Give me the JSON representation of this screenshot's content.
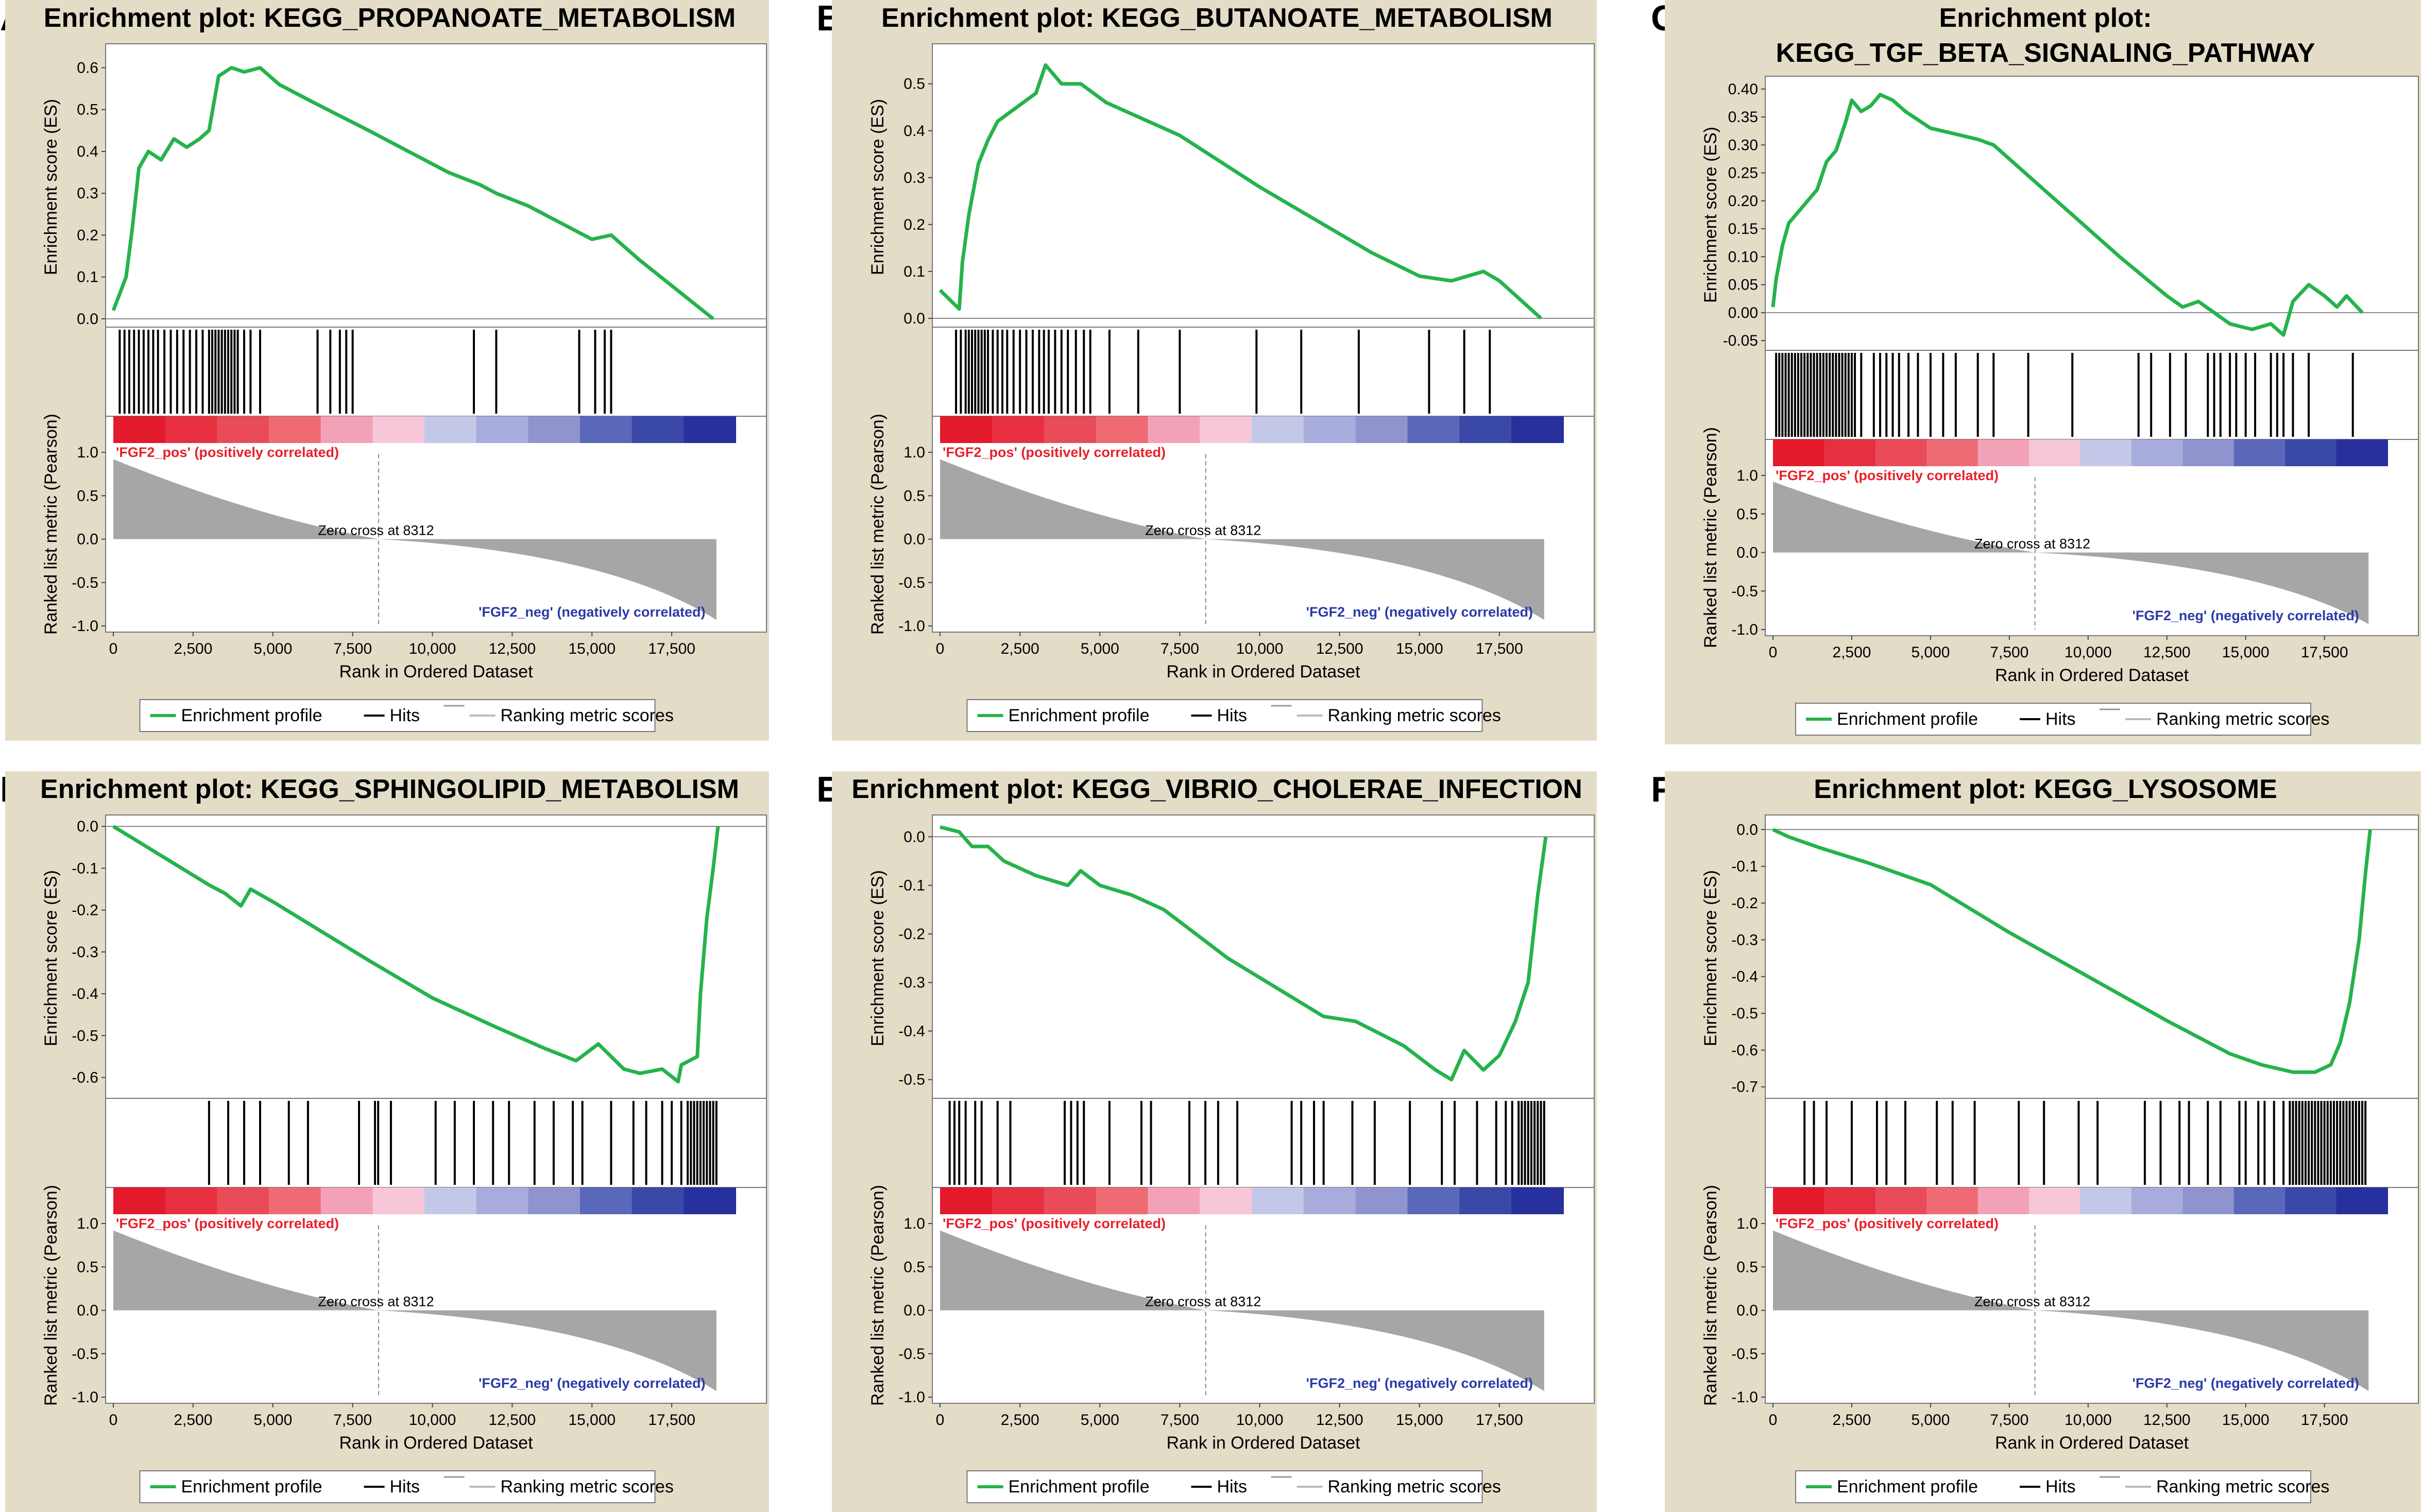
{
  "colors": {
    "frame_bg": "#e3ddc8",
    "enrichment_line": "#25b34b",
    "hits": "#000000",
    "metric_fill": "#a6a6a6",
    "pos_label": "#e8202a",
    "neg_label": "#2b3aa8",
    "heatmap": [
      "#e31a2c",
      "#e6303f",
      "#ea4b58",
      "#ee6b74",
      "#f2a1b6",
      "#f7c6d9",
      "#c4c8e8",
      "#a8acdc",
      "#8f94cf",
      "#5b67b9",
      "#3a48a8",
      "#27309c"
    ]
  },
  "shared": {
    "es_axis_label": "Enrichment score (ES)",
    "metric_axis_label": "Ranked list metric (Pearson)",
    "x_axis_label": "Rank in Ordered Dataset",
    "x_ticks": [
      "0",
      "2,500",
      "5,000",
      "7,500",
      "10,000",
      "12,500",
      "15,000",
      "17,500"
    ],
    "metric_ticks": [
      "1.0",
      "0.5",
      "0.0",
      "-0.5",
      "-1.0"
    ],
    "pos_label": "'FGF2_pos' (positively correlated)",
    "neg_label": "'FGF2_neg' (negatively correlated)",
    "zero_cross_label": "Zero cross at 8312",
    "legend": {
      "enrichment": "Enrichment profile",
      "hits": "Hits",
      "ranking": "Ranking metric scores"
    }
  },
  "chart_data": [
    {
      "type": "line",
      "panel": "A",
      "title": "Enrichment plot: KEGG_PROPANOATE_METABOLISM",
      "y_ticks": [
        "0.6",
        "0.5",
        "0.4",
        "0.3",
        "0.2",
        "0.1",
        "0.0"
      ],
      "ylim": [
        -0.01,
        0.64
      ],
      "xlim": [
        0,
        19500
      ],
      "zero_cross": 8312,
      "es_profile": [
        [
          0,
          0.02
        ],
        [
          200,
          0.06
        ],
        [
          400,
          0.1
        ],
        [
          600,
          0.22
        ],
        [
          800,
          0.36
        ],
        [
          1100,
          0.4
        ],
        [
          1500,
          0.38
        ],
        [
          1900,
          0.43
        ],
        [
          2300,
          0.41
        ],
        [
          2700,
          0.43
        ],
        [
          3000,
          0.45
        ],
        [
          3300,
          0.58
        ],
        [
          3700,
          0.6
        ],
        [
          4100,
          0.59
        ],
        [
          4600,
          0.6
        ],
        [
          5200,
          0.56
        ],
        [
          6200,
          0.52
        ],
        [
          8000,
          0.45
        ],
        [
          10500,
          0.35
        ],
        [
          11500,
          0.32
        ],
        [
          12000,
          0.3
        ],
        [
          13000,
          0.27
        ],
        [
          14500,
          0.21
        ],
        [
          15000,
          0.19
        ],
        [
          15600,
          0.2
        ],
        [
          16500,
          0.14
        ],
        [
          18800,
          0.0
        ]
      ],
      "hits": [
        200,
        350,
        500,
        650,
        800,
        950,
        1100,
        1250,
        1400,
        1600,
        1800,
        2000,
        2200,
        2400,
        2600,
        2800,
        3000,
        3100,
        3200,
        3300,
        3400,
        3500,
        3600,
        3700,
        3800,
        3900,
        4100,
        4300,
        4600,
        6400,
        6800,
        7100,
        7300,
        7500,
        11300,
        12000,
        14600,
        15100,
        15400,
        15600
      ]
    },
    {
      "type": "line",
      "panel": "B",
      "title": "Enrichment plot: KEGG_BUTANOATE_METABOLISM",
      "y_ticks": [
        "0.5",
        "0.4",
        "0.3",
        "0.2",
        "0.1",
        "0.0"
      ],
      "ylim": [
        -0.01,
        0.57
      ],
      "xlim": [
        0,
        19500
      ],
      "zero_cross": 8312,
      "es_profile": [
        [
          0,
          0.06
        ],
        [
          600,
          0.02
        ],
        [
          700,
          0.12
        ],
        [
          900,
          0.22
        ],
        [
          1200,
          0.33
        ],
        [
          1500,
          0.38
        ],
        [
          1800,
          0.42
        ],
        [
          2200,
          0.44
        ],
        [
          2600,
          0.46
        ],
        [
          3000,
          0.48
        ],
        [
          3300,
          0.54
        ],
        [
          3800,
          0.5
        ],
        [
          4400,
          0.5
        ],
        [
          5200,
          0.46
        ],
        [
          7500,
          0.39
        ],
        [
          10000,
          0.28
        ],
        [
          12000,
          0.2
        ],
        [
          13500,
          0.14
        ],
        [
          15000,
          0.09
        ],
        [
          16000,
          0.08
        ],
        [
          16500,
          0.09
        ],
        [
          17000,
          0.1
        ],
        [
          17500,
          0.08
        ],
        [
          18800,
          0.0
        ]
      ],
      "hits": [
        500,
        650,
        800,
        900,
        1000,
        1100,
        1200,
        1300,
        1400,
        1500,
        1650,
        1800,
        1950,
        2100,
        2300,
        2500,
        2700,
        2900,
        3100,
        3250,
        3400,
        3600,
        3800,
        4000,
        4250,
        4500,
        4700,
        5300,
        6200,
        7500,
        9900,
        11300,
        13100,
        15300,
        16400,
        17200
      ]
    },
    {
      "type": "line",
      "panel": "C",
      "title": "Enrichment plot:\nKEGG_TGF_BETA_SIGNALING_PATHWAY",
      "y_ticks": [
        "0.40",
        "0.35",
        "0.30",
        "0.25",
        "0.20",
        "0.15",
        "0.10",
        "0.05",
        "0.00",
        "-0.05"
      ],
      "ylim": [
        -0.06,
        0.41
      ],
      "xlim": [
        0,
        19500
      ],
      "zero_cross": 8312,
      "es_profile": [
        [
          0,
          0.01
        ],
        [
          100,
          0.06
        ],
        [
          300,
          0.12
        ],
        [
          500,
          0.16
        ],
        [
          800,
          0.18
        ],
        [
          1100,
          0.2
        ],
        [
          1400,
          0.22
        ],
        [
          1700,
          0.27
        ],
        [
          2000,
          0.29
        ],
        [
          2300,
          0.34
        ],
        [
          2500,
          0.38
        ],
        [
          2800,
          0.36
        ],
        [
          3100,
          0.37
        ],
        [
          3400,
          0.39
        ],
        [
          3800,
          0.38
        ],
        [
          4200,
          0.36
        ],
        [
          5000,
          0.33
        ],
        [
          6500,
          0.31
        ],
        [
          7000,
          0.3
        ],
        [
          9000,
          0.2
        ],
        [
          11000,
          0.1
        ],
        [
          12500,
          0.03
        ],
        [
          13000,
          0.01
        ],
        [
          13500,
          0.02
        ],
        [
          14000,
          0.0
        ],
        [
          14500,
          -0.02
        ],
        [
          15200,
          -0.03
        ],
        [
          15800,
          -0.02
        ],
        [
          16200,
          -0.04
        ],
        [
          16500,
          0.02
        ],
        [
          17000,
          0.05
        ],
        [
          17500,
          0.03
        ],
        [
          17900,
          0.01
        ],
        [
          18200,
          0.03
        ],
        [
          18700,
          0.0
        ]
      ],
      "hits": [
        100,
        200,
        300,
        400,
        500,
        600,
        700,
        800,
        900,
        1000,
        1100,
        1200,
        1300,
        1400,
        1500,
        1600,
        1700,
        1800,
        1900,
        2000,
        2100,
        2200,
        2300,
        2400,
        2500,
        2600,
        2800,
        3200,
        3400,
        3600,
        3800,
        4000,
        4300,
        4600,
        5000,
        5400,
        5800,
        6500,
        7000,
        8100,
        9500,
        11600,
        12000,
        12600,
        13100,
        13800,
        14000,
        14200,
        14500,
        14700,
        15000,
        15300,
        15800,
        16000,
        16200,
        16500,
        17000,
        18400
      ]
    },
    {
      "type": "line",
      "panel": "D",
      "title": "Enrichment plot: KEGG_SPHINGOLIPID_METABOLISM",
      "y_ticks": [
        "0.0",
        "-0.1",
        "-0.2",
        "-0.3",
        "-0.4",
        "-0.5",
        "-0.6"
      ],
      "ylim": [
        -0.64,
        0.01
      ],
      "xlim": [
        0,
        19500
      ],
      "zero_cross": 8312,
      "es_profile": [
        [
          0,
          0.0
        ],
        [
          3000,
          -0.14
        ],
        [
          3500,
          -0.16
        ],
        [
          4000,
          -0.19
        ],
        [
          4300,
          -0.15
        ],
        [
          5000,
          -0.18
        ],
        [
          8000,
          -0.32
        ],
        [
          10000,
          -0.41
        ],
        [
          12000,
          -0.48
        ],
        [
          13500,
          -0.53
        ],
        [
          14500,
          -0.56
        ],
        [
          15200,
          -0.52
        ],
        [
          16000,
          -0.58
        ],
        [
          16500,
          -0.59
        ],
        [
          17200,
          -0.58
        ],
        [
          17700,
          -0.61
        ],
        [
          17800,
          -0.57
        ],
        [
          18300,
          -0.55
        ],
        [
          18400,
          -0.4
        ],
        [
          18600,
          -0.22
        ],
        [
          18800,
          -0.1
        ],
        [
          18950,
          0.0
        ]
      ],
      "hits": [
        3000,
        3600,
        4100,
        4600,
        5500,
        6100,
        7700,
        8200,
        8300,
        8700,
        10100,
        10700,
        11300,
        11900,
        12400,
        13200,
        13800,
        14400,
        14700,
        15600,
        16300,
        16700,
        17200,
        17500,
        17800,
        18000,
        18100,
        18200,
        18300,
        18400,
        18500,
        18600,
        18700,
        18800,
        18900
      ]
    },
    {
      "type": "line",
      "panel": "E",
      "title": "Enrichment plot: KEGG_VIBRIO_CHOLERAE_INFECTION",
      "y_ticks": [
        "0.0",
        "-0.1",
        "-0.2",
        "-0.3",
        "-0.4",
        "-0.5"
      ],
      "ylim": [
        -0.53,
        0.03
      ],
      "xlim": [
        0,
        19500
      ],
      "zero_cross": 8312,
      "es_profile": [
        [
          0,
          0.02
        ],
        [
          600,
          0.01
        ],
        [
          1000,
          -0.02
        ],
        [
          1500,
          -0.02
        ],
        [
          2000,
          -0.05
        ],
        [
          3000,
          -0.08
        ],
        [
          4000,
          -0.1
        ],
        [
          4400,
          -0.07
        ],
        [
          5000,
          -0.1
        ],
        [
          6000,
          -0.12
        ],
        [
          7000,
          -0.15
        ],
        [
          9000,
          -0.25
        ],
        [
          11000,
          -0.33
        ],
        [
          12000,
          -0.37
        ],
        [
          13000,
          -0.38
        ],
        [
          14500,
          -0.43
        ],
        [
          15500,
          -0.48
        ],
        [
          16000,
          -0.5
        ],
        [
          16400,
          -0.44
        ],
        [
          17000,
          -0.48
        ],
        [
          17500,
          -0.45
        ],
        [
          18000,
          -0.38
        ],
        [
          18400,
          -0.3
        ],
        [
          18700,
          -0.12
        ],
        [
          18950,
          0.0
        ]
      ],
      "hits": [
        300,
        450,
        600,
        800,
        1100,
        1300,
        1800,
        2200,
        3900,
        4100,
        4300,
        4500,
        5300,
        6300,
        6600,
        7800,
        8300,
        8700,
        9300,
        11000,
        11300,
        11700,
        12000,
        12900,
        13600,
        14700,
        15700,
        16100,
        16800,
        17400,
        17700,
        17900,
        18100,
        18200,
        18300,
        18400,
        18500,
        18600,
        18700,
        18800,
        18900
      ]
    },
    {
      "type": "line",
      "panel": "F",
      "title": "Enrichment plot: KEGG_LYSOSOME",
      "y_ticks": [
        "0.0",
        "-0.1",
        "-0.2",
        "-0.3",
        "-0.4",
        "-0.5",
        "-0.6",
        "-0.7"
      ],
      "ylim": [
        -0.72,
        0.02
      ],
      "xlim": [
        0,
        19500
      ],
      "zero_cross": 8312,
      "es_profile": [
        [
          0,
          0.0
        ],
        [
          500,
          -0.02
        ],
        [
          1500,
          -0.05
        ],
        [
          3000,
          -0.09
        ],
        [
          5000,
          -0.15
        ],
        [
          7500,
          -0.28
        ],
        [
          10000,
          -0.4
        ],
        [
          12500,
          -0.52
        ],
        [
          14500,
          -0.61
        ],
        [
          15500,
          -0.64
        ],
        [
          16500,
          -0.66
        ],
        [
          17200,
          -0.66
        ],
        [
          17700,
          -0.64
        ],
        [
          18000,
          -0.58
        ],
        [
          18300,
          -0.47
        ],
        [
          18600,
          -0.3
        ],
        [
          18800,
          -0.12
        ],
        [
          18950,
          0.0
        ]
      ],
      "hits": [
        1000,
        1300,
        1700,
        2500,
        3300,
        3600,
        4200,
        5200,
        5700,
        6400,
        7800,
        8600,
        9700,
        10300,
        11800,
        12300,
        12900,
        13200,
        13800,
        14200,
        14800,
        15000,
        15400,
        15600,
        15900,
        16200,
        16400,
        16500,
        16600,
        16700,
        16800,
        16900,
        17000,
        17100,
        17200,
        17300,
        17400,
        17500,
        17600,
        17700,
        17800,
        17900,
        18000,
        18100,
        18200,
        18300,
        18400,
        18500,
        18600,
        18700,
        18800
      ]
    }
  ],
  "layout_panels": [
    "A",
    "B",
    "C",
    "D",
    "E",
    "F"
  ]
}
